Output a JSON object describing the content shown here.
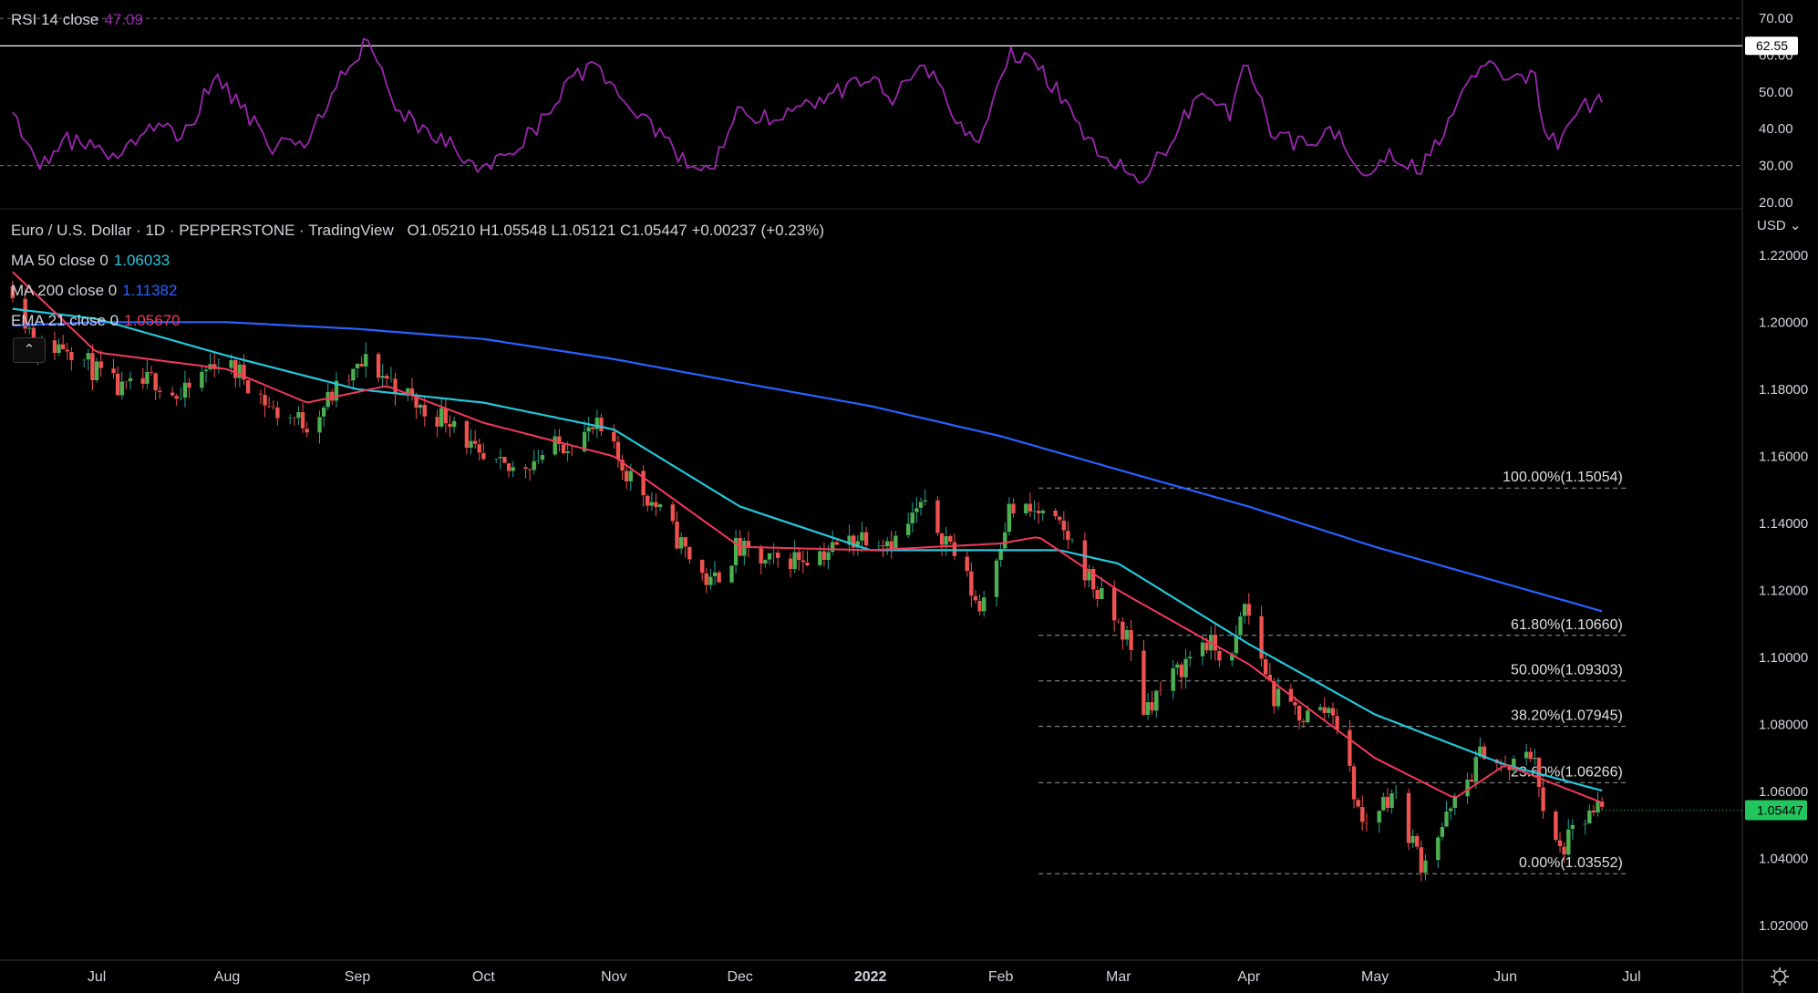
{
  "rsi_legend": {
    "label": "RSI 14 close",
    "value": "47.09"
  },
  "main_legend": {
    "title": "Euro / U.S. Dollar · 1D · PEPPERSTONE · TradingView",
    "ohlc": "O1.05210 H1.05548 L1.05121 C1.05447 +0.00237 (+0.23%)"
  },
  "ma_legends": [
    {
      "label": "MA 50 close 0",
      "value": "1.06033",
      "color": "#26c6da"
    },
    {
      "label": "MA 200 close 0",
      "value": "1.11382",
      "color": "#2962ff"
    },
    {
      "label": "EMA 21 close 0",
      "value": "1.05670",
      "color": "#f23a5a"
    }
  ],
  "currency_label": "USD",
  "chart_data": {
    "type": "candlestick",
    "x_tick_labels": [
      "Jul",
      "Aug",
      "Sep",
      "Oct",
      "Nov",
      "Dec",
      "2022",
      "Feb",
      "Mar",
      "Apr",
      "May",
      "Jun",
      "Jul"
    ],
    "x_tick_dates": [
      "2021-07-01",
      "2021-08-01",
      "2021-09-01",
      "2021-10-01",
      "2021-11-01",
      "2021-12-01",
      "2022-01-01",
      "2022-02-01",
      "2022-03-01",
      "2022-04-01",
      "2022-05-01",
      "2022-06-01",
      "2022-07-01"
    ],
    "price_axis": {
      "ylim": [
        1.01,
        1.233
      ],
      "ticks": [
        "1.22000",
        "1.20000",
        "1.18000",
        "1.16000",
        "1.14000",
        "1.12000",
        "1.10000",
        "1.08000",
        "1.06000",
        "1.04000",
        "1.02000"
      ]
    },
    "rsi_axis": {
      "ylim": [
        18.5,
        75
      ],
      "ticks": [
        "70.00",
        "60.00",
        "50.00",
        "40.00",
        "30.00",
        "20.00"
      ],
      "bands": [
        70,
        30
      ],
      "cursor_value": "62.55"
    },
    "last_price": "1.05447",
    "colors": {
      "up": "#26a69a",
      "up_fill": "#4caf50",
      "down": "#ef5350",
      "rsi": "#9c27b0",
      "last": "#22c55e"
    },
    "close_path": [
      [
        "2021-06-11",
        1.2108
      ],
      [
        "2021-06-17",
        1.192
      ],
      [
        "2021-06-24",
        1.1935
      ],
      [
        "2021-07-01",
        1.185
      ],
      [
        "2021-07-07",
        1.179
      ],
      [
        "2021-07-15",
        1.183
      ],
      [
        "2021-07-21",
        1.177
      ],
      [
        "2021-07-29",
        1.1885
      ],
      [
        "2021-08-05",
        1.184
      ],
      [
        "2021-08-12",
        1.1735
      ],
      [
        "2021-08-20",
        1.17
      ],
      [
        "2021-08-27",
        1.1795
      ],
      [
        "2021-09-03",
        1.188
      ],
      [
        "2021-09-10",
        1.1815
      ],
      [
        "2021-09-17",
        1.173
      ],
      [
        "2021-09-24",
        1.1715
      ],
      [
        "2021-09-30",
        1.158
      ],
      [
        "2021-10-07",
        1.1555
      ],
      [
        "2021-10-14",
        1.16
      ],
      [
        "2021-10-21",
        1.1645
      ],
      [
        "2021-10-28",
        1.168
      ],
      [
        "2021-11-04",
        1.1555
      ],
      [
        "2021-11-11",
        1.145
      ],
      [
        "2021-11-19",
        1.13
      ],
      [
        "2021-11-24",
        1.1215
      ],
      [
        "2021-11-30",
        1.1325
      ],
      [
        "2021-12-07",
        1.128
      ],
      [
        "2021-12-15",
        1.13
      ],
      [
        "2021-12-22",
        1.132
      ],
      [
        "2021-12-31",
        1.137
      ],
      [
        "2022-01-07",
        1.135
      ],
      [
        "2022-01-13",
        1.145
      ],
      [
        "2022-01-20",
        1.134
      ],
      [
        "2022-01-27",
        1.1145
      ],
      [
        "2022-02-03",
        1.144
      ],
      [
        "2022-02-10",
        1.143
      ],
      [
        "2022-02-17",
        1.136
      ],
      [
        "2022-02-24",
        1.119
      ],
      [
        "2022-03-03",
        1.106
      ],
      [
        "2022-03-07",
        1.085
      ],
      [
        "2022-03-14",
        1.094
      ],
      [
        "2022-03-21",
        1.105
      ],
      [
        "2022-03-28",
        1.099
      ],
      [
        "2022-03-31",
        1.116
      ],
      [
        "2022-04-07",
        1.088
      ],
      [
        "2022-04-14",
        1.0825
      ],
      [
        "2022-04-21",
        1.085
      ],
      [
        "2022-04-28",
        1.05
      ],
      [
        "2022-05-05",
        1.06
      ],
      [
        "2022-05-12",
        1.039
      ],
      [
        "2022-05-20",
        1.056
      ],
      [
        "2022-05-27",
        1.073
      ],
      [
        "2022-06-01",
        1.066
      ],
      [
        "2022-06-08",
        1.072
      ],
      [
        "2022-06-10",
        1.052
      ],
      [
        "2022-06-14",
        1.042
      ],
      [
        "2022-06-20",
        1.052
      ],
      [
        "2022-06-24",
        1.0545
      ]
    ],
    "rsi_path": [
      [
        "2021-06-11",
        47
      ],
      [
        "2021-06-17",
        28
      ],
      [
        "2021-06-24",
        37
      ],
      [
        "2021-07-01",
        34
      ],
      [
        "2021-07-07",
        33
      ],
      [
        "2021-07-15",
        42
      ],
      [
        "2021-07-21",
        36
      ],
      [
        "2021-07-29",
        54
      ],
      [
        "2021-08-05",
        45
      ],
      [
        "2021-08-12",
        35
      ],
      [
        "2021-08-20",
        36
      ],
      [
        "2021-08-27",
        52
      ],
      [
        "2021-09-03",
        63
      ],
      [
        "2021-09-10",
        47
      ],
      [
        "2021-09-17",
        38
      ],
      [
        "2021-09-24",
        35
      ],
      [
        "2021-09-30",
        28
      ],
      [
        "2021-10-07",
        34
      ],
      [
        "2021-10-14",
        41
      ],
      [
        "2021-10-21",
        52
      ],
      [
        "2021-10-28",
        58
      ],
      [
        "2021-11-04",
        44
      ],
      [
        "2021-11-11",
        40
      ],
      [
        "2021-11-19",
        30
      ],
      [
        "2021-11-24",
        27
      ],
      [
        "2021-11-30",
        46
      ],
      [
        "2021-12-07",
        43
      ],
      [
        "2021-12-15",
        45
      ],
      [
        "2021-12-22",
        49
      ],
      [
        "2021-12-31",
        54
      ],
      [
        "2022-01-07",
        48
      ],
      [
        "2022-01-13",
        60
      ],
      [
        "2022-01-20",
        45
      ],
      [
        "2022-01-27",
        35
      ],
      [
        "2022-02-03",
        60
      ],
      [
        "2022-02-10",
        57
      ],
      [
        "2022-02-17",
        46
      ],
      [
        "2022-02-24",
        34
      ],
      [
        "2022-03-03",
        28
      ],
      [
        "2022-03-07",
        26
      ],
      [
        "2022-03-14",
        38
      ],
      [
        "2022-03-21",
        51
      ],
      [
        "2022-03-28",
        44
      ],
      [
        "2022-03-31",
        57
      ],
      [
        "2022-04-07",
        38
      ],
      [
        "2022-04-14",
        36
      ],
      [
        "2022-04-21",
        40
      ],
      [
        "2022-04-28",
        26
      ],
      [
        "2022-05-05",
        34
      ],
      [
        "2022-05-12",
        29
      ],
      [
        "2022-05-20",
        45
      ],
      [
        "2022-05-27",
        58
      ],
      [
        "2022-06-01",
        53
      ],
      [
        "2022-06-08",
        55
      ],
      [
        "2022-06-10",
        41
      ],
      [
        "2022-06-14",
        36
      ],
      [
        "2022-06-20",
        46
      ],
      [
        "2022-06-24",
        47.09
      ]
    ],
    "ma50_path": [
      [
        "2021-06-11",
        1.204
      ],
      [
        "2021-07-01",
        1.201
      ],
      [
        "2021-08-01",
        1.19
      ],
      [
        "2021-09-01",
        1.18
      ],
      [
        "2021-10-01",
        1.176
      ],
      [
        "2021-11-01",
        1.168
      ],
      [
        "2021-12-01",
        1.145
      ],
      [
        "2022-01-01",
        1.132
      ],
      [
        "2022-02-01",
        1.132
      ],
      [
        "2022-02-15",
        1.132
      ],
      [
        "2022-03-01",
        1.128
      ],
      [
        "2022-04-01",
        1.104
      ],
      [
        "2022-05-01",
        1.083
      ],
      [
        "2022-06-01",
        1.068
      ],
      [
        "2022-06-24",
        1.0603
      ]
    ],
    "ma200_path": [
      [
        "2021-06-11",
        1.199
      ],
      [
        "2021-07-01",
        1.2
      ],
      [
        "2021-08-01",
        1.2
      ],
      [
        "2021-09-01",
        1.198
      ],
      [
        "2021-10-01",
        1.195
      ],
      [
        "2021-11-01",
        1.189
      ],
      [
        "2021-12-01",
        1.182
      ],
      [
        "2022-01-01",
        1.175
      ],
      [
        "2022-02-01",
        1.166
      ],
      [
        "2022-03-01",
        1.156
      ],
      [
        "2022-04-01",
        1.145
      ],
      [
        "2022-05-01",
        1.133
      ],
      [
        "2022-06-01",
        1.122
      ],
      [
        "2022-06-24",
        1.1138
      ]
    ],
    "ema21_path": [
      [
        "2021-06-11",
        1.215
      ],
      [
        "2021-07-01",
        1.191
      ],
      [
        "2021-08-01",
        1.186
      ],
      [
        "2021-08-20",
        1.176
      ],
      [
        "2021-09-08",
        1.181
      ],
      [
        "2021-10-01",
        1.17
      ],
      [
        "2021-11-01",
        1.16
      ],
      [
        "2021-12-01",
        1.133
      ],
      [
        "2022-01-01",
        1.132
      ],
      [
        "2022-02-01",
        1.134
      ],
      [
        "2022-02-10",
        1.136
      ],
      [
        "2022-03-01",
        1.12
      ],
      [
        "2022-04-01",
        1.098
      ],
      [
        "2022-05-01",
        1.07
      ],
      [
        "2022-05-20",
        1.058
      ],
      [
        "2022-06-01",
        1.068
      ],
      [
        "2022-06-24",
        1.0567
      ]
    ],
    "fibonacci": {
      "start_date": "2022-02-10",
      "end_date": "2022-06-30",
      "levels": [
        {
          "label": "100.00%(1.15054)",
          "price": 1.15054
        },
        {
          "label": "61.80%(1.10660)",
          "price": 1.1066
        },
        {
          "label": "50.00%(1.09303)",
          "price": 1.09303
        },
        {
          "label": "38.20%(1.07945)",
          "price": 1.07945
        },
        {
          "label": "23.60%(1.06266)",
          "price": 1.06266
        },
        {
          "label": "0.00%(1.03552)",
          "price": 1.03552
        }
      ]
    }
  }
}
